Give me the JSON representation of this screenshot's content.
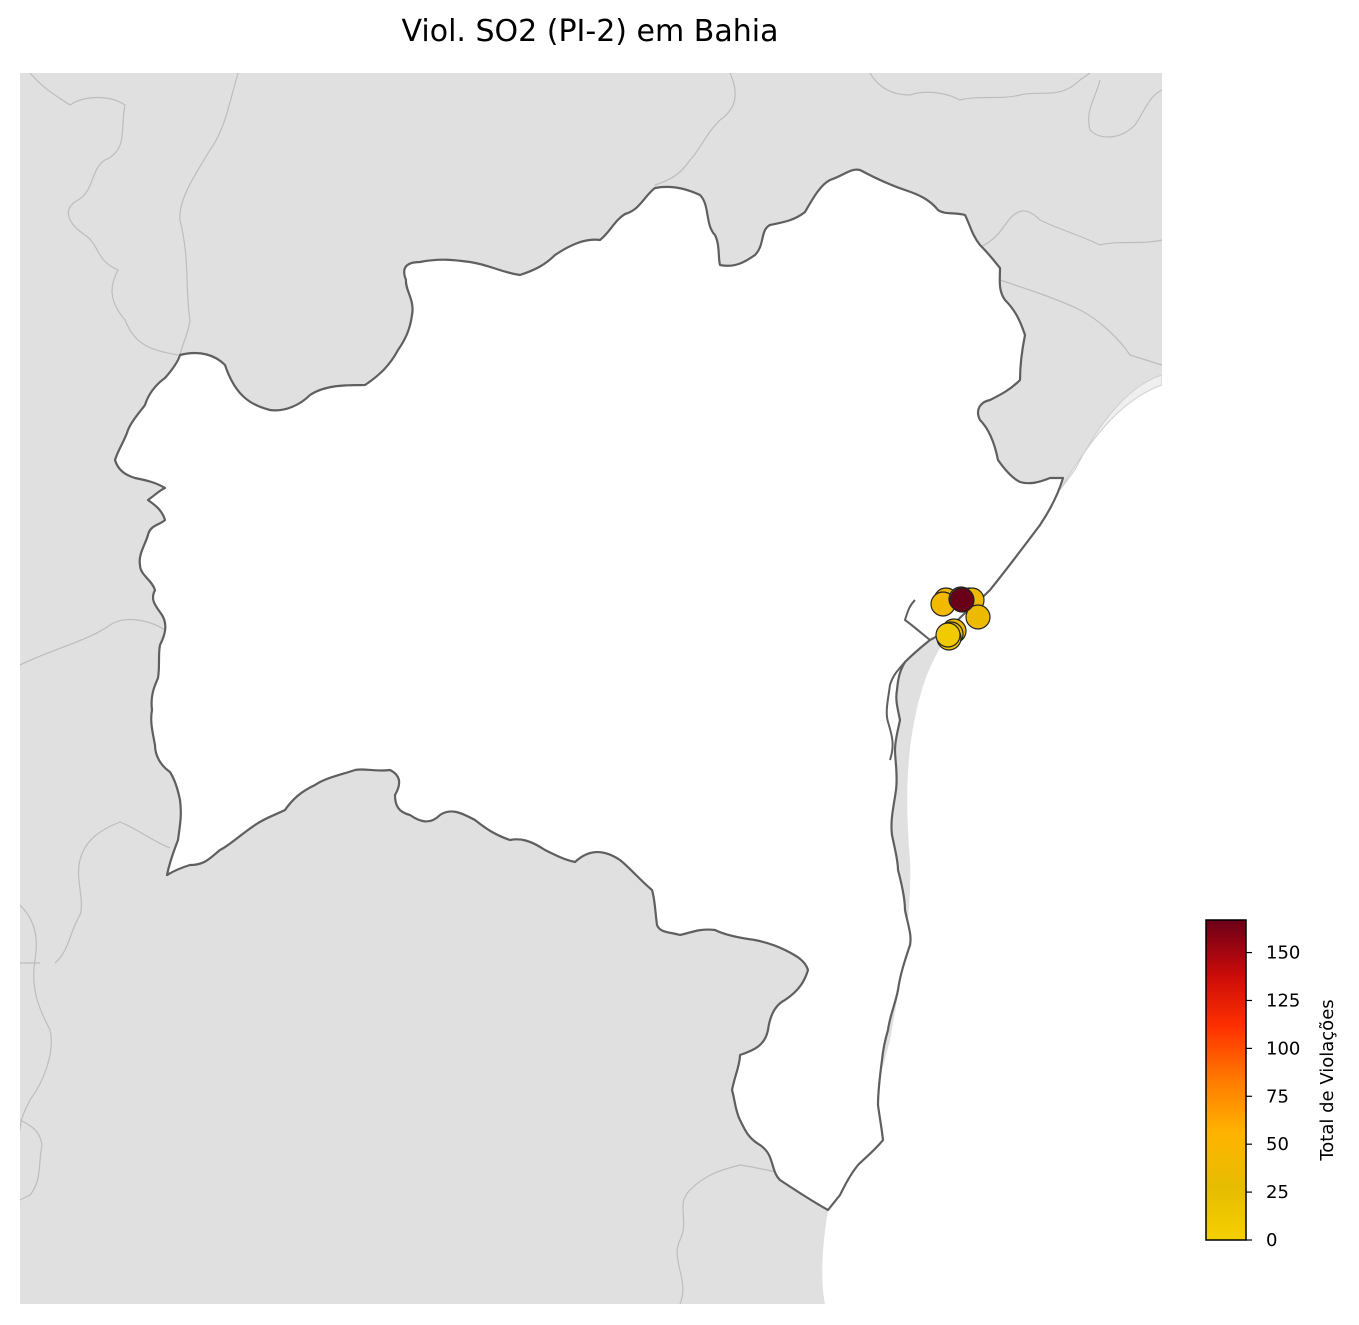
{
  "title": "Viol. SO2 (PI-2) em Bahia",
  "colorbar": {
    "label": "Total de Violações",
    "ticks": [
      "0",
      "25",
      "50",
      "75",
      "100",
      "125",
      "150"
    ],
    "min": 0,
    "max": 167,
    "colors": [
      "#f5d000",
      "#e6bc00",
      "#ffb400",
      "#ff7a00",
      "#ff3000",
      "#c80a0a",
      "#6a0018"
    ]
  },
  "colors": {
    "background_land": "#e0e0e0",
    "state_fill": "#ffffff",
    "state_border": "#5f5f5f",
    "neighbor_border": "#bdbdbd",
    "sea": "#ffffff"
  },
  "stations": [
    {
      "violations": 40
    },
    {
      "violations": 45
    },
    {
      "violations": 38
    },
    {
      "violations": 42
    },
    {
      "violations": 50
    },
    {
      "violations": 35
    },
    {
      "violations": 30
    },
    {
      "violations": 20
    },
    {
      "violations": 12
    },
    {
      "violations": 8
    },
    {
      "violations": 167
    }
  ]
}
